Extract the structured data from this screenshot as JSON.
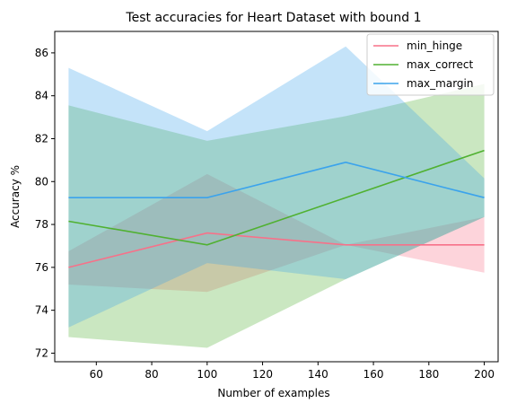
{
  "chart_data": {
    "type": "line",
    "title": "Test accuracies for Heart Dataset with bound 1",
    "xlabel": "Number of examples",
    "ylabel": "Accuracy %",
    "xlim": [
      45,
      205
    ],
    "ylim": [
      71.6,
      87.0
    ],
    "xticks": [
      60,
      80,
      100,
      120,
      140,
      160,
      180,
      200
    ],
    "yticks": [
      72,
      74,
      76,
      78,
      80,
      82,
      84,
      86
    ],
    "x": [
      50,
      100,
      150,
      200
    ],
    "legend_position": "top-right",
    "grid": false,
    "series": [
      {
        "name": "min_hinge",
        "color": "#f77189",
        "band_color": "#f77189",
        "values": [
          76.0,
          77.6,
          77.05,
          77.05
        ],
        "lower": [
          75.2,
          74.85,
          77.05,
          75.75
        ],
        "upper": [
          76.75,
          80.35,
          77.05,
          78.35
        ]
      },
      {
        "name": "max_correct",
        "color": "#50b131",
        "band_color": "#50b131",
        "values": [
          78.15,
          77.05,
          79.25,
          81.45
        ],
        "lower": [
          72.75,
          72.25,
          75.45,
          78.35
        ],
        "upper": [
          83.55,
          81.9,
          83.05,
          84.55
        ]
      },
      {
        "name": "max_margin",
        "color": "#3ba3ec",
        "band_color": "#3ba3ec",
        "values": [
          79.25,
          79.25,
          80.9,
          79.25
        ],
        "lower": [
          73.2,
          76.2,
          75.45,
          78.35
        ],
        "upper": [
          85.3,
          82.35,
          86.3,
          80.15
        ]
      }
    ]
  }
}
